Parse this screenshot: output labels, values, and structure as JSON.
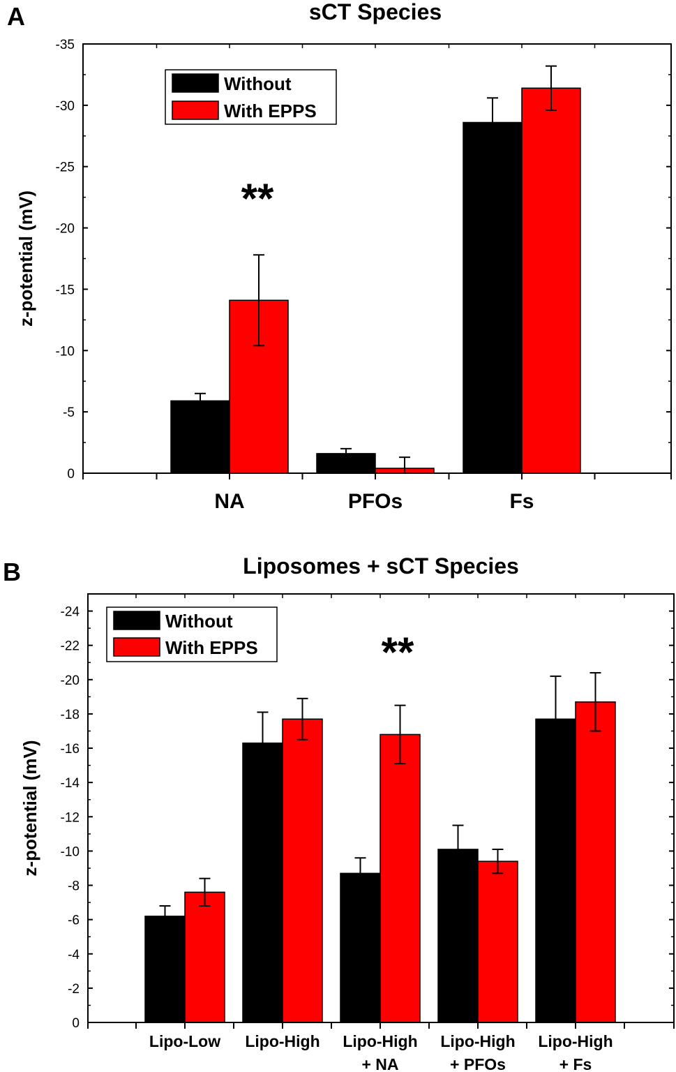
{
  "chart_data": [
    {
      "panel": "A",
      "type": "bar",
      "title": "sCT Species",
      "xlabel": "",
      "ylabel": "z-potential (mV)",
      "ylim": [
        0,
        -35
      ],
      "yticks": [
        0,
        -5,
        -10,
        -15,
        -20,
        -25,
        -30,
        -35
      ],
      "ytick_labels": [
        "0",
        "-5",
        "-10",
        "-15",
        "-20",
        "-25",
        "-30",
        "-35"
      ],
      "categories": [
        [
          "NA"
        ],
        [
          "PFOs"
        ],
        [
          "Fs"
        ]
      ],
      "series": [
        {
          "name": "Without",
          "color": "#000000",
          "values": [
            -5.9,
            -1.6,
            -28.6
          ],
          "errors": [
            0.6,
            0.4,
            2.0
          ]
        },
        {
          "name": "With EPPS",
          "color": "#ff0000",
          "values": [
            -14.1,
            -0.4,
            -31.4
          ],
          "errors": [
            3.7,
            0.9,
            1.8
          ]
        }
      ],
      "legend": [
        "Without",
        "With EPPS"
      ],
      "legend_position": "top-left",
      "annotations": [
        {
          "text": "**",
          "category": "NA"
        }
      ]
    },
    {
      "panel": "B",
      "type": "bar",
      "title": "Liposomes + sCT Species",
      "xlabel": "",
      "ylabel": "z-potential (mV)",
      "ylim": [
        0,
        -25
      ],
      "yticks": [
        0,
        -2,
        -4,
        -6,
        -8,
        -10,
        -12,
        -14,
        -16,
        -18,
        -20,
        -22,
        -24
      ],
      "ytick_labels": [
        "0",
        "-2",
        "-4",
        "-6",
        "-8",
        "-10",
        "-12",
        "-14",
        "-16",
        "-18",
        "-20",
        "-22",
        "-24"
      ],
      "categories": [
        [
          "Lipo-Low"
        ],
        [
          "Lipo-High"
        ],
        [
          "Lipo-High",
          "+ NA"
        ],
        [
          "Lipo-High",
          "+ PFOs"
        ],
        [
          "Lipo-High",
          "+ Fs"
        ]
      ],
      "series": [
        {
          "name": "Without",
          "color": "#000000",
          "values": [
            -6.2,
            -16.3,
            -8.7,
            -10.1,
            -17.7
          ],
          "errors": [
            0.6,
            1.8,
            0.9,
            1.4,
            2.5
          ]
        },
        {
          "name": "With EPPS",
          "color": "#ff0000",
          "values": [
            -7.6,
            -17.7,
            -16.8,
            -9.4,
            -18.7
          ],
          "errors": [
            0.8,
            1.2,
            1.7,
            0.7,
            1.7
          ]
        }
      ],
      "legend": [
        "Without",
        "With EPPS"
      ],
      "legend_position": "top-left",
      "annotations": [
        {
          "text": "**",
          "category": "Lipo-High + NA"
        }
      ]
    }
  ]
}
